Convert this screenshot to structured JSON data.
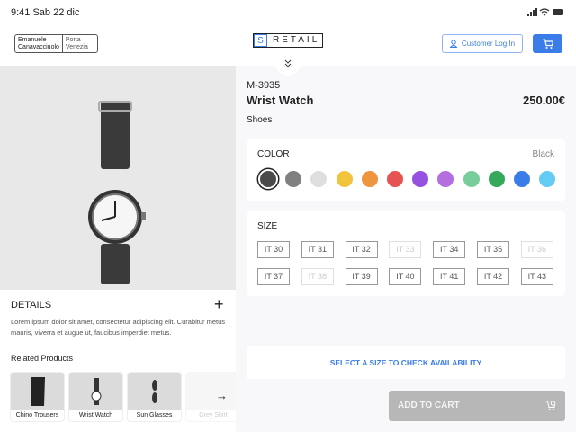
{
  "status": {
    "time": "9:41 Sab 22 dic"
  },
  "header": {
    "store_name": "Emanuele Canavacciuolo",
    "store_location": "Porta Venezia",
    "logo_letter": "S",
    "logo_text": "RETAIL",
    "login_label": "Customer Log In",
    "accent": "#3a7de8"
  },
  "product": {
    "code": "M-3935",
    "name": "Wrist Watch",
    "price": "250.00€",
    "category": "Shoes"
  },
  "color": {
    "title": "COLOR",
    "selected": "Black",
    "swatches": [
      "#4a4a4a",
      "#808080",
      "#dedede",
      "#f2c43e",
      "#ef9540",
      "#e55353",
      "#9651e0",
      "#b46ee0",
      "#78ce9a",
      "#36a85a",
      "#3a7de8",
      "#64cbf5"
    ]
  },
  "size": {
    "title": "SIZE",
    "sizes": [
      {
        "label": "IT 30",
        "available": true
      },
      {
        "label": "IT 31",
        "available": true
      },
      {
        "label": "IT 32",
        "available": true
      },
      {
        "label": "IT 33",
        "available": false
      },
      {
        "label": "IT 34",
        "available": true
      },
      {
        "label": "IT 35",
        "available": true
      },
      {
        "label": "IT 36",
        "available": false
      },
      {
        "label": "IT 37",
        "available": true
      },
      {
        "label": "IT 38",
        "available": false
      },
      {
        "label": "IT 39",
        "available": true
      },
      {
        "label": "IT 40",
        "available": true
      },
      {
        "label": "IT 41",
        "available": true
      },
      {
        "label": "IT 42",
        "available": true
      },
      {
        "label": "IT 43",
        "available": true
      }
    ]
  },
  "availability": "SELECT A SIZE TO CHECK AVAILABILITY",
  "add_to_cart": "ADD TO CART",
  "details": {
    "title": "DETAILS",
    "text": "Lorem ipsum dolor sit amet, consectetur adipiscing elit. Curabitur metus mauris, viverra et augue ut, faucibus imperdiet metus."
  },
  "related": {
    "title": "Related Products",
    "items": [
      "Chino Trousers",
      "Wrist Watch",
      "Sun Glasses",
      "Grey Shirt"
    ]
  }
}
